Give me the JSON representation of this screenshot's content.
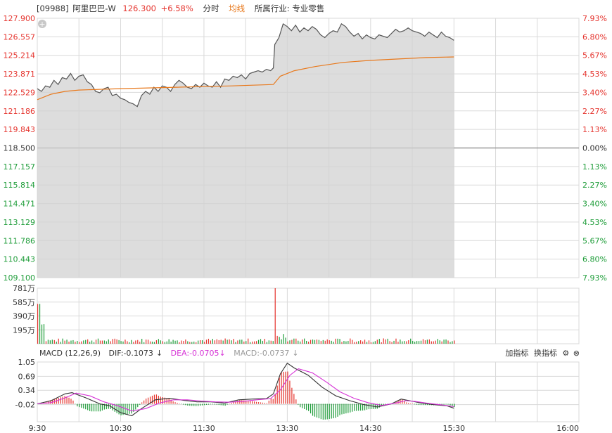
{
  "header": {
    "code": "[09988]",
    "name": "阿里巴巴-W",
    "price": "126.300",
    "change": "+6.58%",
    "tab_minute": "分时",
    "tab_avg": "均线",
    "industry": "所属行业: 专业零售"
  },
  "macd": {
    "label": "MACD (12,26,9)",
    "dif": "DIF:-0.1073",
    "dea": "DEA:-0.0705",
    "macd": "MACD:-0.0737",
    "add_indicator": "加指标",
    "switch_indicator": "换指标"
  },
  "colors": {
    "up": "#e5352f",
    "down": "#1f9d3a",
    "avg_line": "#e8791d",
    "price_line": "#555555",
    "dea_line": "#d633d6",
    "grid": "#d9d9d9"
  },
  "chart_data": [
    {
      "type": "area",
      "title": "price",
      "y_ticks_left": [
        "127.900",
        "126.557",
        "125.214",
        "123.871",
        "122.529",
        "121.186",
        "119.843",
        "118.500",
        "117.157",
        "115.814",
        "114.471",
        "113.129",
        "111.786",
        "110.443",
        "109.100"
      ],
      "y_ticks_right": [
        "7.93%",
        "6.80%",
        "5.67%",
        "4.53%",
        "3.40%",
        "2.27%",
        "1.13%",
        "0.00%",
        "1.13%",
        "2.27%",
        "3.40%",
        "4.53%",
        "5.67%",
        "6.80%",
        "7.93%"
      ],
      "ylim": [
        109.1,
        127.9
      ],
      "prev_close": 118.5,
      "x_ticks": [
        "9:30",
        "10:30",
        "11:30",
        "13:30",
        "14:30",
        "15:30",
        "16:00"
      ],
      "price_series": [
        [
          0,
          122.8
        ],
        [
          3,
          122.6
        ],
        [
          6,
          123.0
        ],
        [
          9,
          122.9
        ],
        [
          12,
          123.4
        ],
        [
          15,
          123.1
        ],
        [
          18,
          123.6
        ],
        [
          21,
          123.5
        ],
        [
          24,
          123.9
        ],
        [
          27,
          123.4
        ],
        [
          30,
          123.7
        ],
        [
          33,
          123.8
        ],
        [
          36,
          123.3
        ],
        [
          39,
          123.1
        ],
        [
          42,
          122.6
        ],
        [
          45,
          122.5
        ],
        [
          48,
          122.8
        ],
        [
          51,
          122.9
        ],
        [
          54,
          122.3
        ],
        [
          57,
          122.4
        ],
        [
          60,
          122.1
        ],
        [
          63,
          122.0
        ],
        [
          66,
          121.8
        ],
        [
          69,
          121.7
        ],
        [
          72,
          121.5
        ],
        [
          75,
          122.3
        ],
        [
          78,
          122.6
        ],
        [
          81,
          122.4
        ],
        [
          84,
          122.9
        ],
        [
          87,
          122.6
        ],
        [
          90,
          123.0
        ],
        [
          93,
          122.9
        ],
        [
          96,
          122.6
        ],
        [
          99,
          123.1
        ],
        [
          102,
          123.4
        ],
        [
          105,
          123.2
        ],
        [
          108,
          122.9
        ],
        [
          111,
          122.8
        ],
        [
          114,
          123.1
        ],
        [
          117,
          122.9
        ],
        [
          120,
          123.2
        ],
        [
          123,
          123.0
        ],
        [
          126,
          122.9
        ],
        [
          129,
          123.3
        ],
        [
          132,
          122.9
        ],
        [
          135,
          123.5
        ],
        [
          138,
          123.4
        ],
        [
          141,
          123.7
        ],
        [
          144,
          123.6
        ],
        [
          147,
          123.8
        ],
        [
          150,
          123.5
        ],
        [
          153,
          123.9
        ],
        [
          156,
          124.0
        ],
        [
          159,
          124.1
        ],
        [
          162,
          124.0
        ],
        [
          165,
          124.2
        ],
        [
          168,
          124.1
        ],
        [
          170,
          124.3
        ],
        [
          171,
          126.0
        ],
        [
          174,
          126.5
        ],
        [
          177,
          127.5
        ],
        [
          180,
          127.3
        ],
        [
          183,
          127.0
        ],
        [
          186,
          127.4
        ],
        [
          189,
          126.9
        ],
        [
          192,
          127.2
        ],
        [
          195,
          127.0
        ],
        [
          198,
          127.3
        ],
        [
          201,
          127.1
        ],
        [
          204,
          126.7
        ],
        [
          207,
          126.5
        ],
        [
          210,
          126.8
        ],
        [
          213,
          127.0
        ],
        [
          216,
          126.9
        ],
        [
          219,
          127.5
        ],
        [
          222,
          127.3
        ],
        [
          225,
          126.9
        ],
        [
          228,
          126.6
        ],
        [
          231,
          126.8
        ],
        [
          234,
          126.4
        ],
        [
          237,
          126.7
        ],
        [
          240,
          126.5
        ],
        [
          243,
          126.4
        ],
        [
          246,
          126.7
        ],
        [
          249,
          126.6
        ],
        [
          252,
          126.5
        ],
        [
          255,
          126.8
        ],
        [
          258,
          127.1
        ],
        [
          261,
          126.9
        ],
        [
          264,
          127.0
        ],
        [
          267,
          127.2
        ],
        [
          270,
          127.0
        ],
        [
          273,
          126.9
        ],
        [
          276,
          126.8
        ],
        [
          279,
          126.6
        ],
        [
          282,
          126.9
        ],
        [
          285,
          126.7
        ],
        [
          288,
          126.5
        ],
        [
          291,
          126.9
        ],
        [
          294,
          126.6
        ],
        [
          297,
          126.5
        ],
        [
          300,
          126.3
        ]
      ],
      "avg_series": [
        [
          0,
          122.0
        ],
        [
          10,
          122.4
        ],
        [
          20,
          122.6
        ],
        [
          30,
          122.7
        ],
        [
          60,
          122.8
        ],
        [
          100,
          122.9
        ],
        [
          140,
          123.0
        ],
        [
          170,
          123.1
        ],
        [
          175,
          123.7
        ],
        [
          185,
          124.1
        ],
        [
          200,
          124.4
        ],
        [
          220,
          124.7
        ],
        [
          240,
          124.85
        ],
        [
          260,
          124.95
        ],
        [
          280,
          125.05
        ],
        [
          300,
          125.1
        ]
      ]
    },
    {
      "type": "bar",
      "title": "volume",
      "y_ticks": [
        "781万",
        "585万",
        "390万",
        "195万"
      ],
      "ylim": [
        0,
        781
      ],
      "notes": "per-minute volume bars, red up / green down"
    },
    {
      "type": "line",
      "title": "MACD",
      "y_ticks": [
        "1.05",
        "0.69",
        "0.34",
        "-0.02"
      ],
      "ylim": [
        -0.45,
        1.05
      ],
      "dif_series": [
        [
          0,
          0.0
        ],
        [
          10,
          0.08
        ],
        [
          20,
          0.25
        ],
        [
          25,
          0.28
        ],
        [
          35,
          0.15
        ],
        [
          45,
          0.0
        ],
        [
          52,
          -0.05
        ],
        [
          60,
          -0.22
        ],
        [
          68,
          -0.3
        ],
        [
          75,
          -0.12
        ],
        [
          85,
          0.1
        ],
        [
          95,
          0.14
        ],
        [
          105,
          0.09
        ],
        [
          115,
          0.05
        ],
        [
          125,
          0.05
        ],
        [
          135,
          0.02
        ],
        [
          145,
          0.1
        ],
        [
          155,
          0.12
        ],
        [
          165,
          0.13
        ],
        [
          170,
          0.25
        ],
        [
          175,
          0.75
        ],
        [
          180,
          1.02
        ],
        [
          185,
          0.9
        ],
        [
          195,
          0.72
        ],
        [
          205,
          0.42
        ],
        [
          215,
          0.2
        ],
        [
          225,
          0.08
        ],
        [
          235,
          -0.02
        ],
        [
          245,
          -0.08
        ],
        [
          255,
          0.0
        ],
        [
          262,
          0.12
        ],
        [
          268,
          0.08
        ],
        [
          275,
          0.03
        ],
        [
          285,
          -0.02
        ],
        [
          295,
          -0.05
        ],
        [
          300,
          -0.11
        ]
      ],
      "dea_series": [
        [
          0,
          0.0
        ],
        [
          10,
          0.03
        ],
        [
          20,
          0.15
        ],
        [
          28,
          0.27
        ],
        [
          38,
          0.2
        ],
        [
          48,
          0.05
        ],
        [
          58,
          -0.05
        ],
        [
          68,
          -0.18
        ],
        [
          78,
          -0.12
        ],
        [
          88,
          0.02
        ],
        [
          98,
          0.1
        ],
        [
          108,
          0.1
        ],
        [
          118,
          0.07
        ],
        [
          128,
          0.05
        ],
        [
          138,
          0.04
        ],
        [
          148,
          0.06
        ],
        [
          158,
          0.1
        ],
        [
          168,
          0.13
        ],
        [
          175,
          0.35
        ],
        [
          182,
          0.72
        ],
        [
          188,
          0.88
        ],
        [
          198,
          0.78
        ],
        [
          208,
          0.55
        ],
        [
          218,
          0.3
        ],
        [
          228,
          0.14
        ],
        [
          238,
          0.03
        ],
        [
          248,
          -0.04
        ],
        [
          258,
          0.02
        ],
        [
          265,
          0.08
        ],
        [
          272,
          0.06
        ],
        [
          282,
          0.01
        ],
        [
          292,
          -0.03
        ],
        [
          300,
          -0.07
        ]
      ]
    }
  ]
}
